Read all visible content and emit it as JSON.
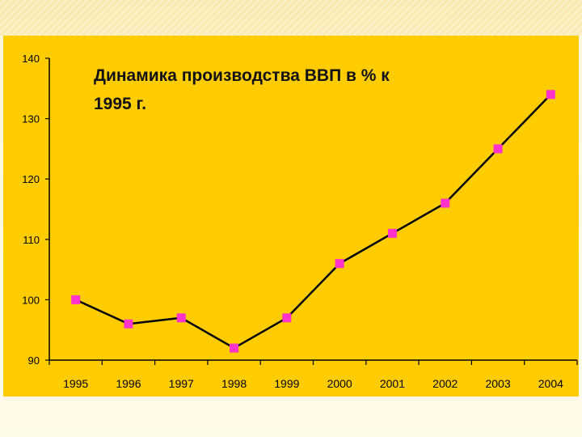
{
  "chart_data": {
    "type": "line",
    "title_lines": [
      "Динамика производства ВВП в % к",
      "1995 г."
    ],
    "categories": [
      "1995",
      "1996",
      "1997",
      "1998",
      "1999",
      "2000",
      "2001",
      "2002",
      "2003",
      "2004"
    ],
    "series": [
      {
        "values": [
          100,
          96,
          97,
          92,
          97,
          106,
          111,
          116,
          125,
          134
        ]
      }
    ],
    "ylim": [
      90,
      140
    ],
    "yticks": [
      90,
      100,
      110,
      120,
      130,
      140
    ],
    "xlabel": "",
    "ylabel": "",
    "grid": false,
    "colors": {
      "background": "#ffcc00",
      "line": "#000000",
      "marker": "#ff33cc",
      "axis": "#000000"
    }
  }
}
